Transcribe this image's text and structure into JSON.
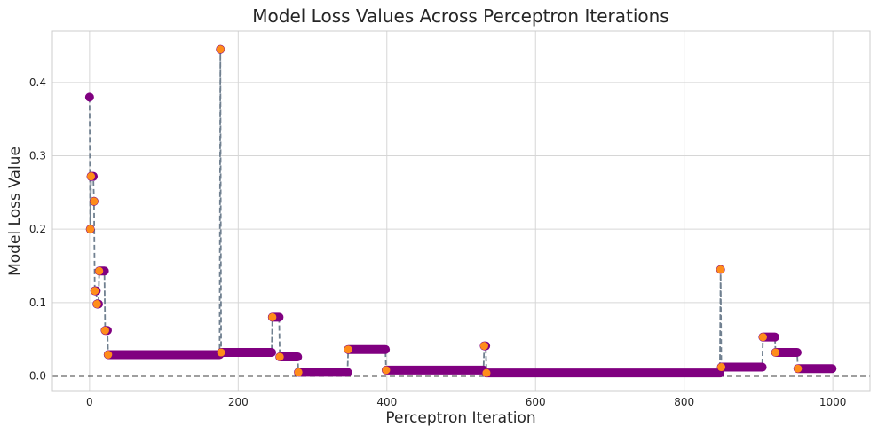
{
  "chart_data": {
    "type": "scatter",
    "title": "Model Loss Values Across Perceptron Iterations",
    "xlabel": "Perceptron Iteration",
    "ylabel": "Model Loss Value",
    "xlim": [
      -50,
      1050
    ],
    "ylim": [
      -0.02,
      0.47
    ],
    "xticks": [
      0,
      200,
      400,
      600,
      800,
      1000
    ],
    "yticks": [
      0.0,
      0.1,
      0.2,
      0.3,
      0.4
    ],
    "ytick_labels": [
      "0.0",
      "0.1",
      "0.2",
      "0.3",
      "0.4"
    ],
    "grid": true,
    "reference_line": {
      "y": 0.0,
      "style": "dashed",
      "color": "#000000"
    },
    "colors": {
      "points": "#800080",
      "highlight": "#ff8c1a",
      "step_line": "#708090",
      "grid": "#d6d6d6",
      "frame": "#cccccc"
    },
    "segments": [
      {
        "x_start": 0,
        "x_end": 0,
        "y": 0.38
      },
      {
        "x_start": 1,
        "x_end": 1,
        "y": 0.2
      },
      {
        "x_start": 2,
        "x_end": 5,
        "y": 0.272
      },
      {
        "x_start": 6,
        "x_end": 6,
        "y": 0.238
      },
      {
        "x_start": 7,
        "x_end": 9,
        "y": 0.116
      },
      {
        "x_start": 10,
        "x_end": 12,
        "y": 0.098
      },
      {
        "x_start": 13,
        "x_end": 20,
        "y": 0.143
      },
      {
        "x_start": 21,
        "x_end": 24,
        "y": 0.062
      },
      {
        "x_start": 25,
        "x_end": 175,
        "y": 0.029
      },
      {
        "x_start": 176,
        "x_end": 176,
        "y": 0.445
      },
      {
        "x_start": 177,
        "x_end": 245,
        "y": 0.032
      },
      {
        "x_start": 246,
        "x_end": 255,
        "y": 0.08
      },
      {
        "x_start": 256,
        "x_end": 280,
        "y": 0.026
      },
      {
        "x_start": 281,
        "x_end": 347,
        "y": 0.005
      },
      {
        "x_start": 348,
        "x_end": 398,
        "y": 0.036
      },
      {
        "x_start": 399,
        "x_end": 530,
        "y": 0.008
      },
      {
        "x_start": 531,
        "x_end": 533,
        "y": 0.041
      },
      {
        "x_start": 534,
        "x_end": 848,
        "y": 0.004
      },
      {
        "x_start": 849,
        "x_end": 849,
        "y": 0.145
      },
      {
        "x_start": 850,
        "x_end": 905,
        "y": 0.012
      },
      {
        "x_start": 906,
        "x_end": 922,
        "y": 0.053
      },
      {
        "x_start": 923,
        "x_end": 952,
        "y": 0.032
      },
      {
        "x_start": 953,
        "x_end": 999,
        "y": 0.01
      }
    ]
  }
}
